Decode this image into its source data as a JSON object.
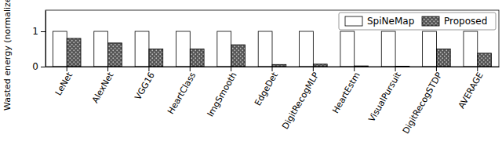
{
  "chart_data": {
    "type": "bar",
    "y_label": "Wasted energy (normalized)",
    "categories": [
      "LeNet",
      "AlexNet",
      "VGG16",
      "HeartClass",
      "ImgSmooth",
      "EdgeDet",
      "DigitRecogMLP",
      "HeartEstm",
      "VisualPursuit",
      "DigitRecogSTDP",
      "AVERAGE"
    ],
    "series": [
      {
        "name": "SpiNeMap",
        "color": "#ffffff",
        "values": [
          1,
          1,
          1,
          1,
          1,
          1,
          1,
          1,
          1,
          1,
          1
        ]
      },
      {
        "name": "Proposed",
        "color": "#555555",
        "values": [
          0.8,
          0.67,
          0.5,
          0.5,
          0.62,
          0.06,
          0.07,
          0.02,
          0.01,
          0.5,
          0.38
        ]
      }
    ],
    "ylim": [
      0,
      1.6
    ],
    "yticks": [
      0,
      1
    ],
    "grid": false,
    "legend": "upper right"
  }
}
